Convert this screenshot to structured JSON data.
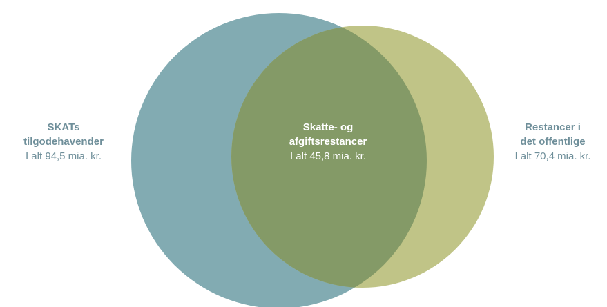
{
  "colors": {
    "left_circle": "#82abb2",
    "right_circle": "#c0c487",
    "overlap": "#849a67",
    "outer_label_text": "#6f8f9a",
    "center_label_text": "#ffffff"
  },
  "left_set": {
    "title_line1": "SKATs",
    "title_line2": "tilgodehavender",
    "total": "I alt 94,5 mia. kr."
  },
  "intersection": {
    "title_line1": "Skatte- og",
    "title_line2": "afgiftsrestancer",
    "total": "I alt 45,8 mia. kr."
  },
  "right_set": {
    "title_line1": "Restancer i",
    "title_line2": "det offentlige",
    "total": "I alt 70,4 mia. kr."
  }
}
